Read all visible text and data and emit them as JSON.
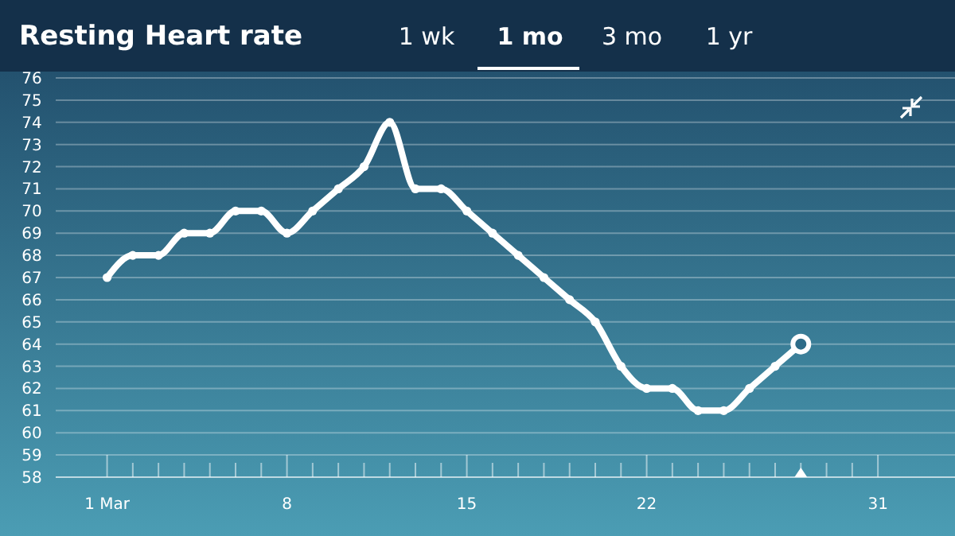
{
  "chart_data": {
    "type": "line",
    "title": "Resting Heart rate",
    "annotations": [
      "1 wk",
      "1 mo",
      "3 mo",
      "1 yr"
    ],
    "x": [
      "--03-01",
      "--03-02",
      "--03-03",
      "--03-04",
      "--03-05",
      "--03-06",
      "--03-07",
      "--03-08",
      "--03-09",
      "--03-10",
      "--03-11",
      "--03-12",
      "--03-13",
      "--03-14",
      "--03-15",
      "--03-16",
      "--03-17",
      "--03-18",
      "--03-19",
      "--03-20",
      "--03-21",
      "--03-22",
      "--03-23",
      "--03-24",
      "--03-25",
      "--03-26",
      "--03-27",
      "--03-28"
    ],
    "series": [
      {
        "color": "#ffffff",
        "values": [
          67,
          68,
          68,
          69,
          69,
          70,
          70,
          69,
          70,
          71,
          72,
          74,
          71,
          71,
          70,
          69,
          68,
          67,
          66,
          65,
          63,
          62,
          62,
          61,
          61,
          62,
          63,
          64
        ]
      }
    ],
    "xlim": [
      "--02-27",
      "--04-03"
    ],
    "xticks": [
      {
        "value": "--03-01",
        "label": "1 Mar"
      },
      {
        "value": "--03-02",
        "label": null
      },
      {
        "value": "--03-03",
        "label": null
      },
      {
        "value": "--03-04",
        "label": null
      },
      {
        "value": "--03-05",
        "label": null
      },
      {
        "value": "--03-06",
        "label": null
      },
      {
        "value": "--03-07",
        "label": null
      },
      {
        "value": "--03-08",
        "label": "8"
      },
      {
        "value": "--03-09",
        "label": null
      },
      {
        "value": "--03-10",
        "label": null
      },
      {
        "value": "--03-11",
        "label": null
      },
      {
        "value": "--03-12",
        "label": null
      },
      {
        "value": "--03-13",
        "label": null
      },
      {
        "value": "--03-14",
        "label": null
      },
      {
        "value": "--03-15",
        "label": "15"
      },
      {
        "value": "--03-16",
        "label": null
      },
      {
        "value": "--03-17",
        "label": null
      },
      {
        "value": "--03-18",
        "label": null
      },
      {
        "value": "--03-19",
        "label": null
      },
      {
        "value": "--03-20",
        "label": null
      },
      {
        "value": "--03-21",
        "label": null
      },
      {
        "value": "--03-22",
        "label": "22"
      },
      {
        "value": "--03-23",
        "label": null
      },
      {
        "value": "--03-24",
        "label": null
      },
      {
        "value": "--03-25",
        "label": null
      },
      {
        "value": "--03-26",
        "label": null
      },
      {
        "value": "--03-27",
        "label": null
      },
      {
        "value": "--03-28",
        "label": null
      },
      {
        "value": "--03-29",
        "label": null
      },
      {
        "value": "--03-30",
        "label": null
      },
      {
        "value": "--03-31",
        "label": "31"
      }
    ],
    "ylim": [
      58,
      76
    ],
    "yticks": [
      58,
      59,
      60,
      61,
      62,
      63,
      64,
      65,
      66,
      67,
      68,
      69,
      70,
      71,
      72,
      73,
      74,
      75,
      76
    ],
    "grid": "y",
    "marker": "circle",
    "line_style": "solid"
  }
}
